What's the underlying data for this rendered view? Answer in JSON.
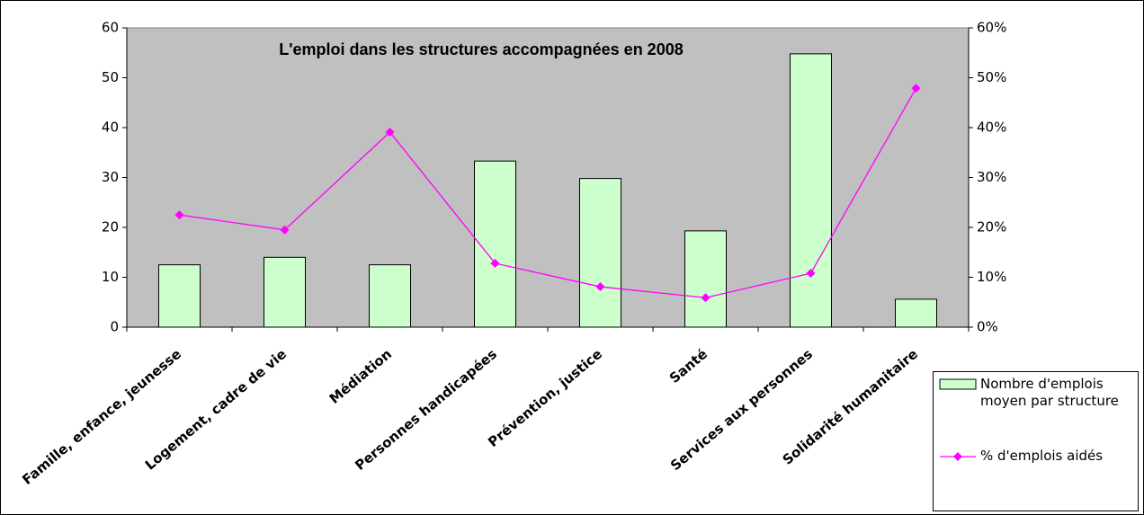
{
  "chart_data": {
    "type": "bar_line",
    "title": "L'emploi dans les structures accompagnées en 2008",
    "categories": [
      "Famille, enfance, jeunesse",
      "Logement, cadre de vie",
      "Médiation",
      "Personnes handicapées",
      "Prévention, justice",
      "Santé",
      "Services aux personnes",
      "Solidarité humanitaire"
    ],
    "series": [
      {
        "name": "Nombre d'emplois moyen par structure",
        "color": "#ccffcc",
        "type": "bar",
        "values": [
          12.5,
          14,
          12.5,
          33.3,
          29.8,
          19.3,
          54.8,
          5.6
        ]
      },
      {
        "name": "% d'emplois aidés",
        "color": "#ff00ff",
        "type": "line",
        "axis": "y2",
        "values": [
          22.5,
          19.5,
          39.1,
          12.8,
          8.1,
          5.9,
          10.8,
          47.9
        ]
      }
    ],
    "ylim": [
      0,
      60
    ],
    "yticks": [
      0,
      10,
      20,
      30,
      40,
      50,
      60
    ],
    "y2lim": [
      0,
      60
    ],
    "y2ticks": [
      {
        "value": 0,
        "label": "0%"
      },
      {
        "value": 10,
        "label": "10%"
      },
      {
        "value": 20,
        "label": "20%"
      },
      {
        "value": 30,
        "label": "30%"
      },
      {
        "value": 40,
        "label": "40%"
      },
      {
        "value": 50,
        "label": "50%"
      },
      {
        "value": 60,
        "label": "60%"
      }
    ],
    "plot_background": "#c0c0c0"
  }
}
